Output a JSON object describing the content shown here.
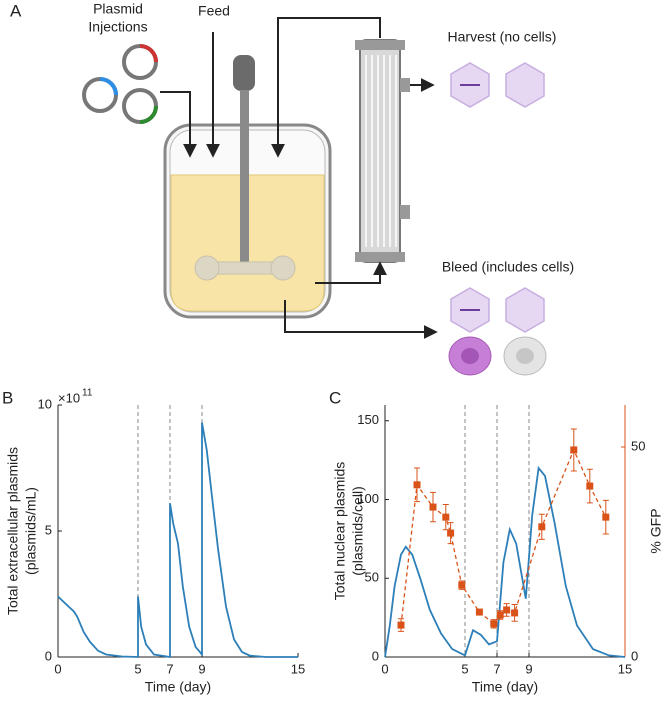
{
  "figure": {
    "panel_label": "A",
    "plasmid_label": [
      "Plasmid",
      "Injections"
    ],
    "feed_label": "Feed",
    "harvest_label": "Harvest (no cells)",
    "bleed_label": "Bleed (includes cells)"
  },
  "chart_data": [
    {
      "type": "line",
      "panel_label": "B",
      "xlabel": "Time (day)",
      "ylabel": [
        "Total extracellular plasmids",
        "(plasmids/mL)"
      ],
      "y_scale_label": {
        "base": "×10",
        "exponent": "11"
      },
      "xlim": [
        0,
        15
      ],
      "xticks": [
        0,
        5,
        7,
        9,
        15
      ],
      "ylim": [
        0,
        10
      ],
      "yticks": [
        0,
        5,
        10
      ],
      "vlines": [
        5,
        7,
        9
      ],
      "series": [
        {
          "color": "#2c7fb8",
          "x": [
            0,
            0.5,
            1,
            1.2,
            1.6,
            2,
            2.5,
            3,
            4,
            5,
            5,
            5.2,
            5.5,
            6,
            7,
            7,
            7.2,
            7.5,
            7.8,
            8.2,
            8.6,
            9,
            9,
            9.3,
            9.6,
            10,
            10.5,
            11,
            11.5,
            12,
            13,
            15
          ],
          "values": [
            2.4,
            2.1,
            1.8,
            1.6,
            1.0,
            0.6,
            0.25,
            0.1,
            0.02,
            0,
            2.4,
            1.2,
            0.5,
            0.1,
            0,
            6.1,
            5.3,
            4.5,
            2.8,
            1.2,
            0.4,
            0.1,
            9.3,
            8.2,
            6.5,
            4.3,
            2.0,
            0.7,
            0.2,
            0.05,
            0,
            0
          ]
        }
      ]
    },
    {
      "type": "line",
      "panel_label": "C",
      "xlabel": "Time (day)",
      "ylabel": [
        "Total nuclear plasmids",
        "(plasmids/cell)"
      ],
      "y2label": "% GFP",
      "xlim": [
        0,
        15
      ],
      "xticks": [
        0,
        5,
        7,
        9,
        15
      ],
      "ylim": [
        0,
        160
      ],
      "yticks": [
        0,
        50,
        100,
        150
      ],
      "y2lim": [
        0,
        60
      ],
      "y2ticks": [
        0,
        50
      ],
      "y2color": "#d95319",
      "vlines": [
        5,
        7,
        9
      ],
      "series": [
        {
          "color": "#2c7fb8",
          "x": [
            0,
            0.3,
            0.6,
            1,
            1.3,
            1.7,
            2.2,
            2.8,
            3.5,
            4.2,
            5,
            5.5,
            6,
            6.5,
            7,
            7.4,
            7.8,
            8.2,
            8.8,
            9.2,
            9.6,
            10,
            10.6,
            11.3,
            12,
            13,
            14,
            15
          ],
          "values": [
            0,
            20,
            45,
            65,
            70,
            65,
            50,
            30,
            15,
            5,
            1,
            17,
            14,
            8,
            10,
            60,
            81,
            72,
            37,
            90,
            120,
            115,
            85,
            45,
            20,
            5,
            1,
            0
          ]
        },
        {
          "color": "#d95319",
          "axis": "y2",
          "dashed": true,
          "x": [
            1,
            2,
            3,
            3.8,
            4.1,
            4.8,
            5.9,
            6.8,
            7.2,
            7.6,
            8.1,
            9.8,
            11.8,
            12.8,
            13.8
          ],
          "values": [
            7.6,
            41,
            35.7,
            33.3,
            29.5,
            17.1,
            10.7,
            7.9,
            10,
            11.2,
            10.5,
            31,
            49.3,
            40.7,
            33.3
          ],
          "errors": [
            1.5,
            4,
            3.5,
            3,
            2.5,
            1,
            0.5,
            1,
            1,
            1.5,
            2,
            3,
            5,
            4,
            4
          ]
        }
      ]
    }
  ]
}
